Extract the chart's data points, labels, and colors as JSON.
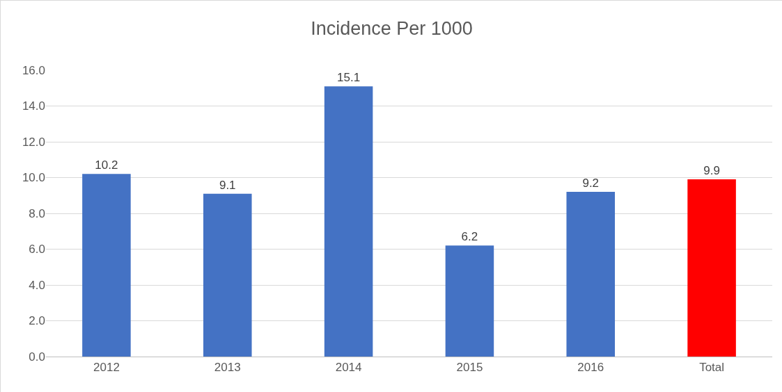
{
  "chart_data": {
    "type": "bar",
    "title": "Incidence Per 1000",
    "categories": [
      "2012",
      "2013",
      "2014",
      "2015",
      "2016",
      "Total"
    ],
    "values": [
      10.2,
      9.1,
      15.1,
      6.2,
      9.2,
      9.9
    ],
    "colors": [
      "#4472c4",
      "#4472c4",
      "#4472c4",
      "#4472c4",
      "#4472c4",
      "#ff0000"
    ],
    "ylim": [
      0,
      16
    ],
    "yticks": [
      {
        "value": 0,
        "label": "0.0"
      },
      {
        "value": 2,
        "label": "2.0"
      },
      {
        "value": 4,
        "label": "4.0"
      },
      {
        "value": 6,
        "label": "6.0"
      },
      {
        "value": 8,
        "label": "8.0"
      },
      {
        "value": 10,
        "label": "10.0"
      },
      {
        "value": 12,
        "label": "12.0"
      },
      {
        "value": 14,
        "label": "14.0"
      },
      {
        "value": 16,
        "label": "16.0"
      }
    ],
    "grid": "y",
    "data_labels": true,
    "legend": false
  }
}
